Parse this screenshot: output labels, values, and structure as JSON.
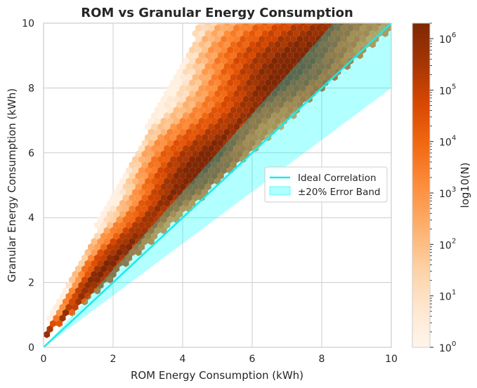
{
  "chart_data": {
    "type": "hexbin",
    "title": "ROM vs Granular Energy Consumption",
    "xlabel": "ROM Energy Consumption (kWh)",
    "ylabel": "Granular Energy Consumption (kWh)",
    "xlim": [
      0,
      10
    ],
    "ylim": [
      0,
      10
    ],
    "xticks": [
      "0",
      "2",
      "4",
      "6",
      "8",
      "10"
    ],
    "yticks": [
      "0",
      "2",
      "4",
      "6",
      "8",
      "10"
    ],
    "grid": true,
    "colormap": "Oranges",
    "colorbar": {
      "label": "log10(N)",
      "scale": "log",
      "range": [
        1,
        2000000
      ],
      "ticks": [
        {
          "base": "10",
          "exp": "0",
          "value": 1
        },
        {
          "base": "10",
          "exp": "1",
          "value": 10
        },
        {
          "base": "10",
          "exp": "2",
          "value": 100
        },
        {
          "base": "10",
          "exp": "3",
          "value": 1000
        },
        {
          "base": "10",
          "exp": "4",
          "value": 10000
        },
        {
          "base": "10",
          "exp": "5",
          "value": 100000
        },
        {
          "base": "10",
          "exp": "6",
          "value": 1000000
        }
      ]
    },
    "density": {
      "upper_envelope_slope": 2.1,
      "peak_slope": 1.18,
      "lower_envelope_slope": 0.96,
      "intercept_shift": 0.25
    },
    "reference_line": {
      "name": "Ideal Correlation",
      "x": [
        0,
        10
      ],
      "y": [
        0,
        10
      ],
      "color": "#20e8e8"
    },
    "error_band": {
      "name": "±20% Error Band",
      "lower_factor": 0.8,
      "upper_factor": 1.2,
      "color": "#00ffff",
      "alpha": 0.3
    },
    "legend": {
      "position": "center-right",
      "entries": [
        {
          "label": "Ideal Correlation",
          "kind": "line"
        },
        {
          "label": "±20% Error Band",
          "kind": "patch"
        }
      ]
    }
  }
}
